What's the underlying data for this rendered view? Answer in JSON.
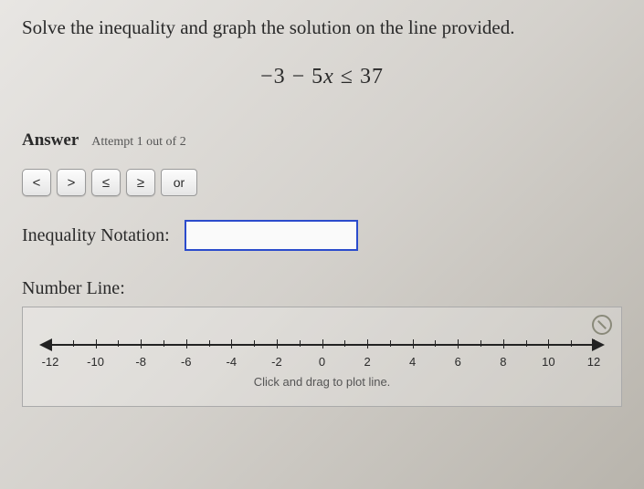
{
  "prompt": "Solve the inequality and graph the solution on the line provided.",
  "equation": {
    "lhs_pre": "−3 − 5",
    "var": "x",
    "rel": " ≤ ",
    "rhs": "37"
  },
  "answer": {
    "label": "Answer",
    "attempt": "Attempt 1 out of 2"
  },
  "symbols": {
    "lt": "<",
    "gt": ">",
    "le": "≤",
    "ge": "≥",
    "or": "or"
  },
  "notation": {
    "label": "Inequality Notation:",
    "value": ""
  },
  "numberline": {
    "label": "Number Line:",
    "min": -12,
    "max": 12,
    "major_step": 2,
    "labels": [
      "-12",
      "-10",
      "-8",
      "-6",
      "-4",
      "-2",
      "0",
      "2",
      "4",
      "6",
      "8",
      "10",
      "12"
    ],
    "hint": "Click and drag to plot line.",
    "axis_color": "#222222",
    "box_border": "#aaaaaa"
  }
}
